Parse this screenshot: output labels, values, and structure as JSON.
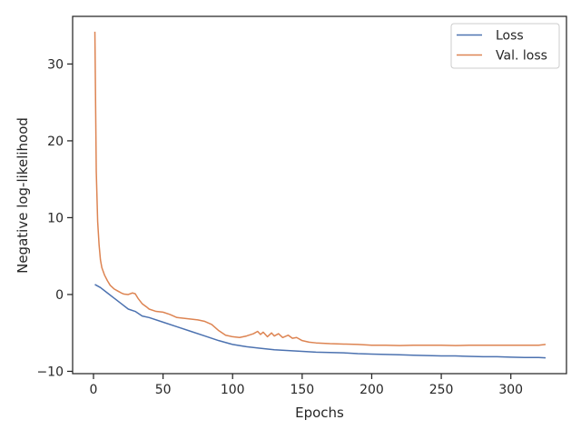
{
  "chart_data": {
    "type": "line",
    "title": "",
    "xlabel": "Epochs",
    "ylabel": "Negative log-likelihood",
    "xlim": [
      -15,
      340
    ],
    "ylim": [
      -10.3,
      36.2
    ],
    "x_ticks": [
      0,
      50,
      100,
      150,
      200,
      250,
      300
    ],
    "y_ticks": [
      -10,
      0,
      10,
      20,
      30
    ],
    "y_tick_labels": [
      "−10",
      "0",
      "10",
      "20",
      "30"
    ],
    "grid": false,
    "legend_position": "top-right",
    "series": [
      {
        "name": "Loss",
        "color": "#4c72b0",
        "x": [
          1,
          5,
          10,
          15,
          20,
          25,
          30,
          35,
          40,
          50,
          60,
          70,
          80,
          90,
          100,
          110,
          120,
          130,
          140,
          150,
          160,
          170,
          180,
          190,
          200,
          210,
          220,
          230,
          240,
          250,
          260,
          270,
          280,
          290,
          300,
          310,
          320,
          325
        ],
        "values": [
          1.3,
          0.9,
          0.2,
          -0.5,
          -1.2,
          -1.9,
          -2.2,
          -2.8,
          -3.0,
          -3.6,
          -4.2,
          -4.8,
          -5.4,
          -6.0,
          -6.5,
          -6.8,
          -7.0,
          -7.2,
          -7.3,
          -7.4,
          -7.5,
          -7.55,
          -7.6,
          -7.7,
          -7.75,
          -7.8,
          -7.85,
          -7.9,
          -7.95,
          -8.0,
          -8.0,
          -8.05,
          -8.1,
          -8.1,
          -8.15,
          -8.2,
          -8.2,
          -8.25
        ]
      },
      {
        "name": "Val. loss",
        "color": "#dd8452",
        "x": [
          1,
          2,
          3,
          4,
          5,
          6,
          8,
          10,
          12,
          15,
          18,
          20,
          22,
          25,
          28,
          30,
          32,
          35,
          38,
          40,
          45,
          50,
          55,
          60,
          65,
          70,
          75,
          80,
          85,
          90,
          95,
          100,
          105,
          110,
          115,
          118,
          120,
          122,
          125,
          128,
          130,
          133,
          136,
          140,
          143,
          146,
          150,
          155,
          160,
          170,
          180,
          190,
          200,
          210,
          220,
          230,
          240,
          250,
          260,
          270,
          280,
          290,
          300,
          310,
          320,
          325
        ],
        "values": [
          34.2,
          16.0,
          9.5,
          6.5,
          4.5,
          3.5,
          2.5,
          1.8,
          1.2,
          0.7,
          0.4,
          0.2,
          0.05,
          0.0,
          0.2,
          0.1,
          -0.5,
          -1.2,
          -1.6,
          -1.9,
          -2.2,
          -2.3,
          -2.6,
          -3.0,
          -3.1,
          -3.2,
          -3.3,
          -3.5,
          -3.9,
          -4.7,
          -5.3,
          -5.5,
          -5.6,
          -5.4,
          -5.1,
          -4.8,
          -5.2,
          -4.9,
          -5.5,
          -5.0,
          -5.4,
          -5.1,
          -5.6,
          -5.3,
          -5.7,
          -5.6,
          -6.0,
          -6.2,
          -6.3,
          -6.4,
          -6.45,
          -6.5,
          -6.6,
          -6.6,
          -6.65,
          -6.6,
          -6.6,
          -6.6,
          -6.65,
          -6.6,
          -6.6,
          -6.6,
          -6.6,
          -6.6,
          -6.6,
          -6.5
        ]
      }
    ]
  }
}
